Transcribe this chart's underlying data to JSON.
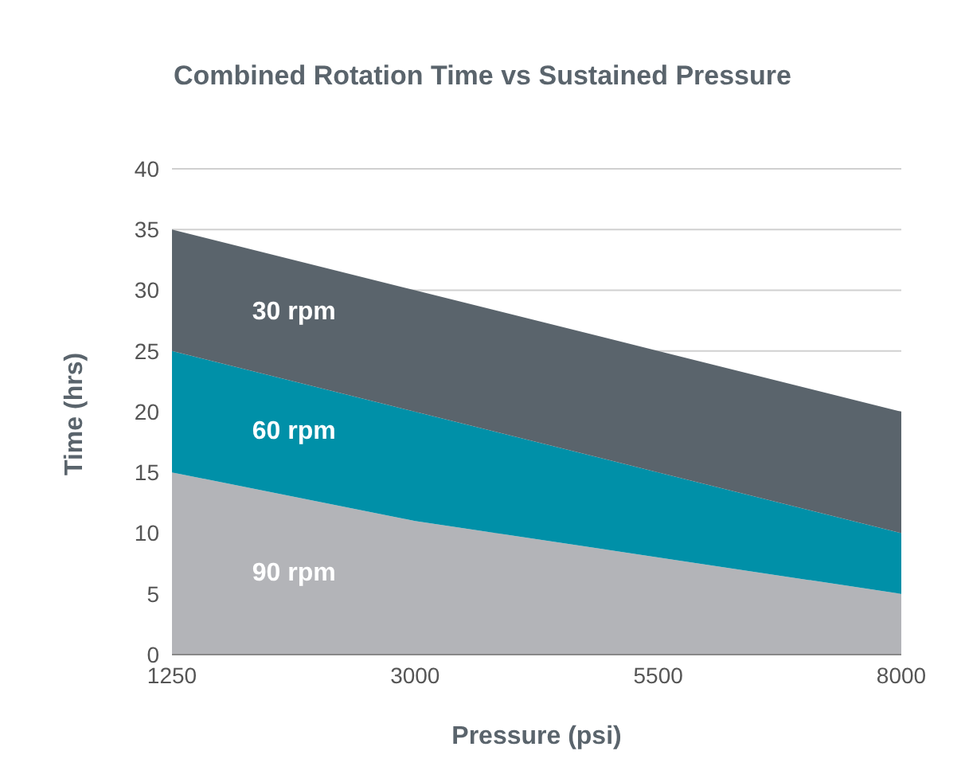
{
  "chart_data": {
    "type": "area",
    "title": "Combined Rotation Time vs Sustained Pressure",
    "xlabel": "Pressure (psi)",
    "ylabel": "Time (hrs)",
    "categories": [
      "1250",
      "3000",
      "5500",
      "8000"
    ],
    "stacked": true,
    "ylim": [
      0,
      40
    ],
    "yticks": [
      0,
      5,
      10,
      15,
      20,
      25,
      30,
      35,
      40
    ],
    "grid": "y",
    "legend": false,
    "series": [
      {
        "name": "90 rpm",
        "color": "#b3b4b8",
        "values": [
          15,
          11,
          8,
          5
        ]
      },
      {
        "name": "60 rpm",
        "color": "#0090a8",
        "values": [
          10,
          9,
          7,
          5
        ]
      },
      {
        "name": "30 rpm",
        "color": "#5a646c",
        "values": [
          10,
          10,
          10,
          10
        ]
      }
    ]
  }
}
